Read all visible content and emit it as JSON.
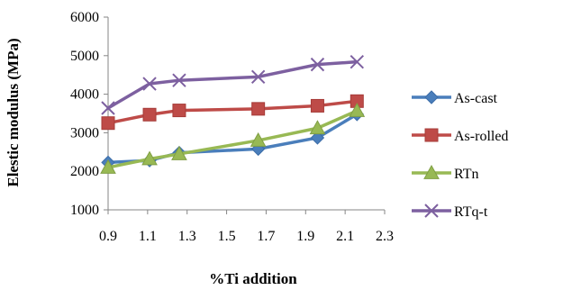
{
  "chart_data": {
    "type": "line",
    "title": "",
    "xlabel": "%Ti addition",
    "ylabel": "Elestic modulus (MPa)",
    "xlim": [
      0.9,
      2.3
    ],
    "ylim": [
      1000,
      6000
    ],
    "xticks": [
      "0.9",
      "1.1",
      "1.3",
      "1.5",
      "1.7",
      "1.9",
      "2.1",
      "2.3"
    ],
    "yticks": [
      "1000",
      "2000",
      "3000",
      "4000",
      "5000",
      "6000"
    ],
    "grid": false,
    "legend_position": "right",
    "series": [
      {
        "name": "As-cast",
        "color": "#4a7ebb",
        "marker": "diamond",
        "x": [
          0.9,
          1.11,
          1.26,
          1.66,
          1.96,
          2.16
        ],
        "y": [
          2230,
          2280,
          2480,
          2580,
          2870,
          3480
        ]
      },
      {
        "name": "As-rolled",
        "color": "#be4b48",
        "marker": "square",
        "x": [
          0.9,
          1.11,
          1.26,
          1.66,
          1.96,
          2.16
        ],
        "y": [
          3250,
          3470,
          3580,
          3620,
          3700,
          3820
        ]
      },
      {
        "name": "RTn",
        "color": "#98b954",
        "marker": "triangle",
        "x": [
          0.9,
          1.11,
          1.26,
          1.66,
          1.96,
          2.16
        ],
        "y": [
          2100,
          2320,
          2450,
          2800,
          3120,
          3570
        ]
      },
      {
        "name": "RTq-t",
        "color": "#7d60a0",
        "marker": "x",
        "x": [
          0.9,
          1.11,
          1.26,
          1.66,
          1.96,
          2.16
        ],
        "y": [
          3640,
          4270,
          4360,
          4450,
          4770,
          4840
        ]
      }
    ]
  }
}
